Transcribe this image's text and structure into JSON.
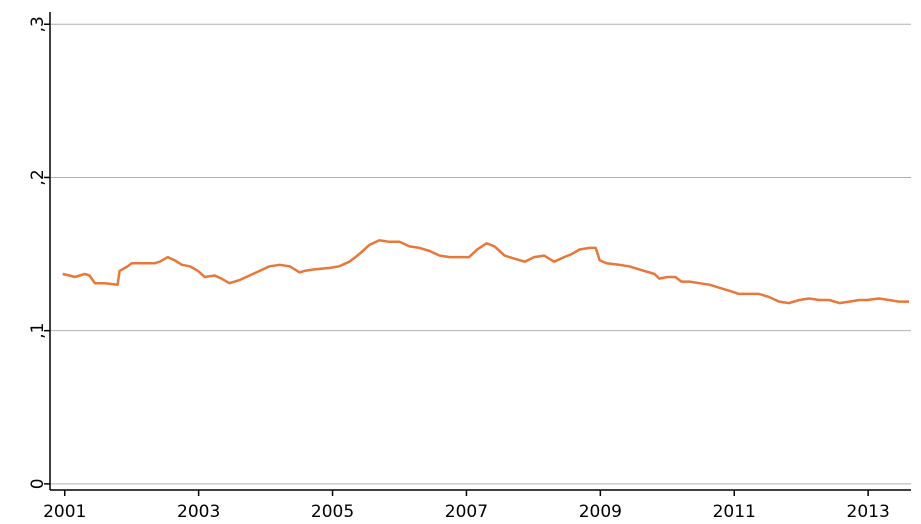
{
  "chart_data": {
    "type": "line",
    "x": [
      2000.97,
      2001.07,
      2001.15,
      2001.3,
      2001.37,
      2001.45,
      2001.6,
      2001.79,
      2001.82,
      2001.94,
      2002.0,
      2002.19,
      2002.34,
      2002.42,
      2002.54,
      2002.64,
      2002.75,
      2002.87,
      2002.99,
      2003.09,
      2003.24,
      2003.34,
      2003.46,
      2003.61,
      2003.76,
      2003.91,
      2004.06,
      2004.21,
      2004.36,
      2004.51,
      2004.58,
      2004.73,
      2004.96,
      2005.1,
      2005.25,
      2005.4,
      2005.55,
      2005.7,
      2005.85,
      2006.0,
      2006.15,
      2006.3,
      2006.45,
      2006.6,
      2006.75,
      2007.04,
      2007.16,
      2007.3,
      2007.42,
      2007.57,
      2007.72,
      2007.87,
      2008.01,
      2008.16,
      2008.31,
      2008.46,
      2008.57,
      2008.69,
      2008.84,
      2008.93,
      2008.99,
      2009.09,
      2009.28,
      2009.43,
      2009.58,
      2009.81,
      2009.88,
      2010.0,
      2010.12,
      2010.21,
      2010.33,
      2010.48,
      2010.63,
      2010.78,
      2010.93,
      2011.07,
      2011.22,
      2011.37,
      2011.52,
      2011.67,
      2011.82,
      2011.97,
      2012.12,
      2012.27,
      2012.42,
      2012.57,
      2012.72,
      2012.87,
      2012.99,
      2013.16,
      2013.31,
      2013.46,
      2013.61
    ],
    "series": [
      {
        "color": "#e8773a",
        "values": [
          0.137,
          0.136,
          0.135,
          0.137,
          0.136,
          0.131,
          0.131,
          0.13,
          0.139,
          0.142,
          0.144,
          0.144,
          0.144,
          0.145,
          0.148,
          0.146,
          0.143,
          0.142,
          0.139,
          0.135,
          0.136,
          0.134,
          0.131,
          0.133,
          0.136,
          0.139,
          0.142,
          0.143,
          0.142,
          0.138,
          0.139,
          0.14,
          0.141,
          0.142,
          0.145,
          0.15,
          0.156,
          0.159,
          0.158,
          0.158,
          0.155,
          0.154,
          0.152,
          0.149,
          0.148,
          0.148,
          0.153,
          0.157,
          0.155,
          0.149,
          0.147,
          0.145,
          0.148,
          0.149,
          0.145,
          0.148,
          0.15,
          0.153,
          0.154,
          0.154,
          0.146,
          0.144,
          0.143,
          0.142,
          0.14,
          0.137,
          0.134,
          0.135,
          0.135,
          0.132,
          0.132,
          0.131,
          0.13,
          0.128,
          0.126,
          0.124,
          0.124,
          0.124,
          0.122,
          0.119,
          0.118,
          0.12,
          0.121,
          0.12,
          0.12,
          0.118,
          0.119,
          0.12,
          0.12,
          0.121,
          0.12,
          0.119,
          0.119
        ]
      }
    ],
    "xlim": [
      2000.78,
      2013.64
    ],
    "xticks": [
      2001,
      2003,
      2005,
      2007,
      2009,
      2011,
      2013
    ],
    "ylim": [
      -0.004,
      0.308
    ],
    "yticks": [
      0,
      {
        "value": 0.1,
        "label": ",1"
      },
      {
        "value": 0.2,
        "label": ",2"
      },
      {
        "value": 0.3,
        "label": ",3"
      }
    ],
    "grid": true
  }
}
